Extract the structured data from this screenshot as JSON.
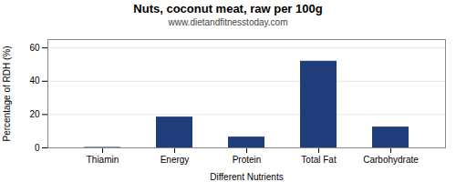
{
  "chart_data": {
    "type": "bar",
    "title": "Nuts, coconut meat, raw per 100g",
    "subtitle": "www.dietandfitnesstoday.com",
    "xlabel": "Different Nutrients",
    "ylabel": "Percentage of RDH (%)",
    "categories": [
      "Thiamin",
      "Energy",
      "Protein",
      "Total Fat",
      "Carbohydrate"
    ],
    "values": [
      0.3,
      18.5,
      6.5,
      52.0,
      12.5
    ],
    "color": "#1F3D7A",
    "ylim": [
      0,
      65
    ],
    "yticks": [
      0,
      20,
      40,
      60
    ],
    "grid": true
  }
}
